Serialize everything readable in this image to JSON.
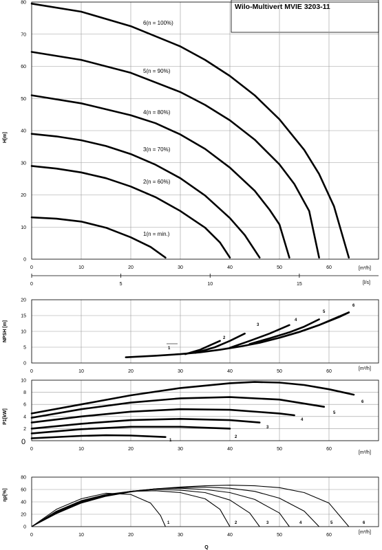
{
  "title": "Wilo-Multivert MVIE 3203-11",
  "chart_data": [
    {
      "type": "line",
      "id": "head",
      "ylabel": "H[m]",
      "xunit": "[m³/h]",
      "secondary_xunit": "[l/s]",
      "xlim": [
        0,
        70
      ],
      "ylim": [
        0,
        80
      ],
      "xticks": [
        "0",
        "10",
        "20",
        "30",
        "40",
        "50",
        "60"
      ],
      "yticks": [
        "0",
        "10",
        "20",
        "30",
        "40",
        "50",
        "60",
        "70",
        "80"
      ],
      "secondary_xlim": [
        0,
        19.44
      ],
      "secondary_xticks": [
        "0",
        "5",
        "10",
        "15"
      ],
      "series": [
        {
          "name": "1(n = min.)",
          "x": [
            0,
            5,
            10,
            15,
            20,
            24,
            27
          ],
          "y": [
            13,
            12.6,
            11.7,
            9.8,
            6.8,
            3.8,
            0.5
          ]
        },
        {
          "name": "2(n = 60%)",
          "x": [
            0,
            5,
            10,
            15,
            20,
            25,
            30,
            35,
            38,
            40
          ],
          "y": [
            29,
            28.2,
            27,
            25.2,
            22.6,
            19.3,
            15,
            9.8,
            5.2,
            0.5
          ]
        },
        {
          "name": "3(n = 70%)",
          "x": [
            0,
            5,
            10,
            15,
            20,
            25,
            30,
            35,
            40,
            43,
            46
          ],
          "y": [
            39,
            38.2,
            37,
            35.2,
            32.7,
            29.4,
            25.2,
            19.8,
            12.8,
            7.5,
            0.5
          ]
        },
        {
          "name": "4(n = 80%)",
          "x": [
            0,
            10,
            20,
            25,
            30,
            35,
            40,
            45,
            48,
            50,
            52
          ],
          "y": [
            51,
            48.5,
            44.8,
            42.3,
            38.8,
            34.3,
            28.5,
            21.3,
            15.4,
            10.8,
            0.5
          ]
        },
        {
          "name": "5(n = 90%)",
          "x": [
            0,
            10,
            20,
            30,
            35,
            40,
            45,
            50,
            53,
            56,
            58
          ],
          "y": [
            64.5,
            62,
            58,
            52,
            48,
            43.2,
            37.2,
            29.5,
            23.4,
            15,
            0.5
          ]
        },
        {
          "name": "6(n = 100%)",
          "x": [
            0,
            10,
            20,
            30,
            35,
            40,
            45,
            50,
            55,
            58,
            61,
            64
          ],
          "y": [
            79.5,
            77,
            72.5,
            66.2,
            62,
            57,
            51,
            43.5,
            34,
            26.5,
            16.5,
            0.5
          ]
        }
      ]
    },
    {
      "type": "line",
      "id": "npsh",
      "ylabel": "NPSH [m]",
      "xunit": "[m³/h]",
      "xlim": [
        0,
        70
      ],
      "ylim": [
        0,
        20
      ],
      "yticks": [
        "0",
        "5",
        "10",
        "15",
        "20"
      ],
      "series": [
        {
          "name": "1",
          "x": [
            19,
            25,
            30,
            34,
            38,
            42,
            46,
            50,
            54,
            58,
            62,
            64
          ],
          "y": [
            1.8,
            2.3,
            2.8,
            3.4,
            4.2,
            5.2,
            6.4,
            8,
            9.8,
            12,
            14.5,
            16
          ]
        },
        {
          "name": "2",
          "x": [
            31,
            34,
            36,
            38
          ],
          "y": [
            2.8,
            4.2,
            5.6,
            7
          ]
        },
        {
          "name": "3",
          "x": [
            33,
            37,
            40,
            43
          ],
          "y": [
            3.2,
            5,
            7,
            9.3
          ]
        },
        {
          "name": "4",
          "x": [
            40,
            44,
            48,
            52
          ],
          "y": [
            4.8,
            7,
            9.3,
            12
          ]
        },
        {
          "name": "5",
          "x": [
            44,
            48,
            52,
            55,
            58
          ],
          "y": [
            6,
            7.8,
            9.7,
            11.5,
            13.8
          ]
        },
        {
          "name": "6",
          "x": [
            50,
            54,
            58,
            61,
            64
          ],
          "y": [
            8,
            9.8,
            12,
            14,
            16
          ]
        }
      ]
    },
    {
      "type": "line",
      "id": "power",
      "ylabel": "P1[kW]",
      "xunit": "[m³/h]",
      "xlim": [
        0,
        70
      ],
      "ylim": [
        0,
        10
      ],
      "yticks": [
        "0",
        "2",
        "4",
        "6",
        "8",
        "10"
      ],
      "ytick_zero_label": "0",
      "series": [
        {
          "name": "1",
          "x": [
            0,
            10,
            15,
            20,
            27
          ],
          "y": [
            0.4,
            0.8,
            0.9,
            0.85,
            0.6
          ]
        },
        {
          "name": "2",
          "x": [
            0,
            10,
            20,
            30,
            40
          ],
          "y": [
            1.2,
            1.9,
            2.3,
            2.3,
            2.0
          ]
        },
        {
          "name": "3",
          "x": [
            0,
            10,
            20,
            30,
            40,
            46
          ],
          "y": [
            2.0,
            2.8,
            3.4,
            3.6,
            3.4,
            3.0
          ]
        },
        {
          "name": "4",
          "x": [
            0,
            10,
            20,
            30,
            40,
            50,
            53
          ],
          "y": [
            3.0,
            4.0,
            4.8,
            5.2,
            5.1,
            4.5,
            4.2
          ]
        },
        {
          "name": "5",
          "x": [
            0,
            10,
            20,
            30,
            40,
            50,
            59
          ],
          "y": [
            3.8,
            5.2,
            6.3,
            7.0,
            7.2,
            6.8,
            5.6
          ]
        },
        {
          "name": "6",
          "x": [
            0,
            10,
            20,
            30,
            40,
            45,
            50,
            55,
            60,
            65
          ],
          "y": [
            4.5,
            6.0,
            7.5,
            8.7,
            9.5,
            9.7,
            9.6,
            9.2,
            8.5,
            7.6
          ]
        }
      ]
    },
    {
      "type": "line",
      "id": "efficiency",
      "ylabel": "ηp[%]",
      "xunit": "[m³/h]",
      "xlabel": "Q",
      "xlim": [
        0,
        70
      ],
      "ylim": [
        0,
        80
      ],
      "yticks": [
        "0",
        "20",
        "40",
        "60",
        "80"
      ],
      "series": [
        {
          "name": "1",
          "x": [
            0,
            5,
            10,
            15,
            20,
            24,
            26,
            27
          ],
          "y": [
            0,
            28,
            45,
            54,
            52,
            38,
            18,
            0
          ]
        },
        {
          "name": "2",
          "x": [
            0,
            5,
            10,
            15,
            20,
            25,
            30,
            35,
            38,
            40
          ],
          "y": [
            0,
            25,
            42,
            52,
            57,
            58,
            55,
            45,
            28,
            0
          ]
        },
        {
          "name": "3",
          "x": [
            0,
            5,
            10,
            15,
            20,
            25,
            30,
            35,
            40,
            44,
            46
          ],
          "y": [
            0,
            24,
            41,
            51,
            57,
            60,
            59,
            55,
            43,
            22,
            0
          ]
        },
        {
          "name": "4",
          "x": [
            0,
            5,
            10,
            15,
            20,
            25,
            30,
            35,
            40,
            45,
            50,
            52
          ],
          "y": [
            0,
            23,
            40,
            50,
            57,
            61,
            62,
            60,
            55,
            44,
            22,
            0
          ]
        },
        {
          "name": "5",
          "x": [
            0,
            5,
            10,
            15,
            20,
            25,
            30,
            35,
            40,
            45,
            50,
            55,
            58
          ],
          "y": [
            0,
            22,
            39,
            50,
            57,
            61,
            63,
            64,
            62,
            57,
            46,
            25,
            0
          ]
        },
        {
          "name": "6",
          "x": [
            0,
            5,
            10,
            15,
            20,
            25,
            30,
            35,
            40,
            45,
            50,
            55,
            60,
            64
          ],
          "y": [
            0,
            21,
            38,
            49,
            56,
            61,
            64,
            66,
            67,
            66,
            63,
            55,
            38,
            0
          ]
        }
      ]
    }
  ]
}
